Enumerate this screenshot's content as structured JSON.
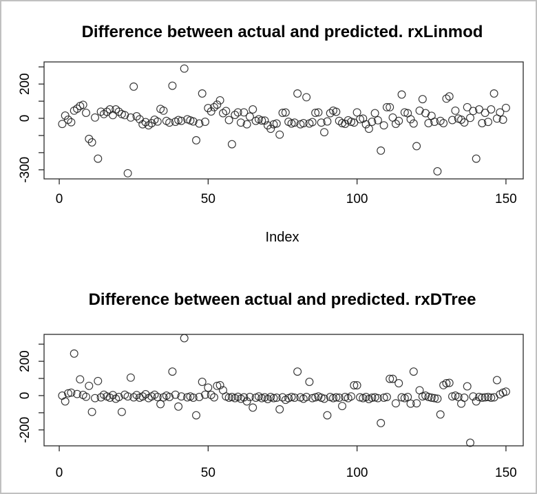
{
  "window": {
    "background": "#ffffff",
    "frame_border_color": "#c0c0c0",
    "plot_box_color": "#2a2a2a",
    "marker_color": "#1a1a1a"
  },
  "chart_data": [
    {
      "type": "scatter",
      "title": "Difference between actual and predicted. rxLinmod",
      "xlabel": "Index",
      "ylabel": "",
      "marker": "open-circle",
      "grid": false,
      "legend": null,
      "x_start": 1,
      "xlim": [
        -5.1,
        155.8
      ],
      "ylim": [
        -353,
        329
      ],
      "x_ticks": [
        {
          "v": 0,
          "label": "0"
        },
        {
          "v": 50,
          "label": "50"
        },
        {
          "v": 100,
          "label": "100"
        },
        {
          "v": 150,
          "label": "150"
        }
      ],
      "y_ticks": [
        {
          "v": 300,
          "label": ""
        },
        {
          "v": 200,
          "label": "200"
        },
        {
          "v": 100,
          "label": ""
        },
        {
          "v": 0,
          "label": "0"
        },
        {
          "v": -100,
          "label": ""
        },
        {
          "v": -200,
          "label": ""
        },
        {
          "v": -300,
          "label": "-300"
        }
      ],
      "values": [
        -33,
        16,
        -8,
        -23,
        45,
        56,
        72,
        79,
        32,
        -120,
        -140,
        5,
        -235,
        39,
        25,
        38,
        52,
        19,
        52,
        39,
        25,
        19,
        -320,
        5,
        185,
        12,
        -5,
        -35,
        -22,
        -41,
        -28,
        -8,
        -19,
        55,
        45,
        -15,
        -25,
        190,
        -20,
        -10,
        -15,
        290,
        -5,
        -12,
        -18,
        -128,
        -30,
        145,
        -20,
        60,
        40,
        65,
        80,
        105,
        30,
        43,
        -10,
        -151,
        20,
        35,
        -25,
        35,
        -35,
        10,
        52,
        -15,
        -5,
        -13,
        -13,
        -41,
        -61,
        -35,
        -30,
        -95,
        32,
        34,
        -20,
        -30,
        -25,
        145,
        -35,
        -28,
        123,
        -30,
        -22,
        32,
        35,
        -25,
        -81,
        -18,
        30,
        45,
        38,
        -15,
        -28,
        -32,
        -11,
        -20,
        -25,
        35,
        -5,
        -1,
        -35,
        -61,
        -20,
        30,
        -11,
        -188,
        -41,
        65,
        65,
        5,
        -32,
        -15,
        139,
        35,
        30,
        -5,
        -30,
        -162,
        45,
        112,
        30,
        -28,
        15,
        -20,
        -309,
        -15,
        -28,
        115,
        128,
        -10,
        45,
        -1,
        -8,
        -24,
        65,
        3,
        43,
        -235,
        52,
        -28,
        32,
        -21,
        52,
        145,
        -1,
        35,
        -8,
        61
      ]
    },
    {
      "type": "scatter",
      "title": "Difference between actual and predicted. rxDTree",
      "xlabel": "",
      "ylabel": "",
      "marker": "open-circle",
      "grid": false,
      "legend": null,
      "x_start": 1,
      "xlim": [
        -5.1,
        155.8
      ],
      "ylim": [
        -293,
        357
      ],
      "x_ticks": [
        {
          "v": 0,
          "label": "0"
        },
        {
          "v": 50,
          "label": "50"
        },
        {
          "v": 100,
          "label": "100"
        },
        {
          "v": 150,
          "label": "150"
        }
      ],
      "y_ticks": [
        {
          "v": 300,
          "label": ""
        },
        {
          "v": 200,
          "label": "200"
        },
        {
          "v": 100,
          "label": ""
        },
        {
          "v": 0,
          "label": "0"
        },
        {
          "v": -100,
          "label": ""
        },
        {
          "v": -200,
          "label": "-200"
        }
      ],
      "values": [
        0,
        -34,
        13,
        17,
        245,
        9,
        95,
        4,
        -7,
        57,
        -95,
        -15,
        85,
        -10,
        5,
        -5,
        -12,
        3,
        -18,
        -8,
        -95,
        5,
        -5,
        105,
        -10,
        3,
        -12,
        -5,
        8,
        -15,
        -5,
        5,
        -8,
        -50,
        -10,
        0,
        -8,
        140,
        5,
        -64,
        -5,
        335,
        -10,
        -5,
        -12,
        -115,
        -8,
        80,
        5,
        47,
        4,
        -10,
        57,
        61,
        31,
        -5,
        -12,
        -8,
        -15,
        -7,
        -18,
        -10,
        -34,
        -8,
        -70,
        -12,
        -5,
        -15,
        -10,
        -20,
        -8,
        -15,
        -12,
        -80,
        -10,
        -25,
        -15,
        -8,
        -12,
        140,
        -10,
        -18,
        -8,
        80,
        -15,
        -10,
        -5,
        -12,
        -18,
        -115,
        -8,
        -15,
        -10,
        -12,
        -61,
        -8,
        -15,
        -5,
        60,
        60,
        -10,
        -15,
        -8,
        -20,
        -12,
        -10,
        -15,
        -160,
        -12,
        -8,
        98,
        98,
        -45,
        72,
        -10,
        -15,
        -8,
        -47,
        140,
        -45,
        31,
        -5,
        0,
        -8,
        -12,
        -15,
        -18,
        -110,
        61,
        72,
        74,
        -5,
        0,
        -8,
        -47,
        -12,
        54,
        -275,
        -5,
        -34,
        -8,
        -12,
        -10,
        -8,
        -12,
        -10,
        90,
        7,
        17,
        23
      ]
    }
  ]
}
